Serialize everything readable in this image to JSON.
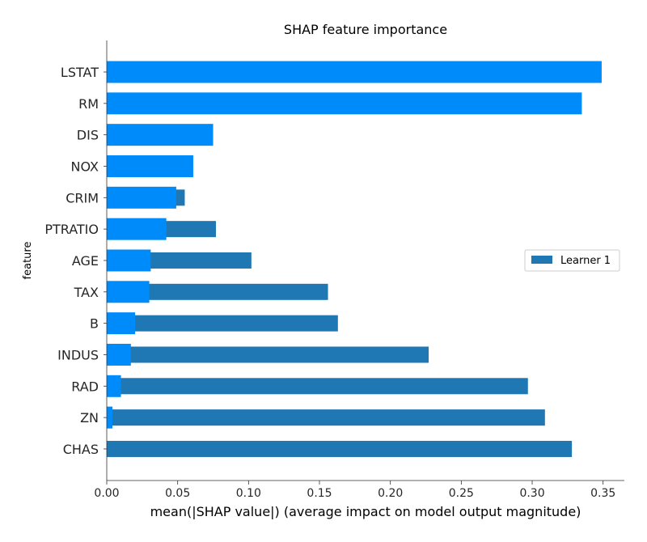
{
  "chart_data": {
    "type": "bar",
    "orientation": "horizontal",
    "title": "SHAP feature importance",
    "xlabel": "mean(|SHAP value|) (average impact on model output magnitude)",
    "ylabel": "feature",
    "xlim": [
      0,
      0.365
    ],
    "x_ticks": [
      "0.00",
      "0.05",
      "0.10",
      "0.15",
      "0.20",
      "0.25",
      "0.30",
      "0.35"
    ],
    "categories": [
      "LSTAT",
      "RM",
      "DIS",
      "NOX",
      "CRIM",
      "PTRATIO",
      "AGE",
      "TAX",
      "B",
      "INDUS",
      "RAD",
      "ZN",
      "CHAS"
    ],
    "series": [
      {
        "color": "#008bfb",
        "values": [
          0.349,
          0.335,
          0.075,
          0.061,
          0.049,
          0.042,
          0.031,
          0.03,
          0.02,
          0.017,
          0.01,
          0.004,
          0.0
        ]
      },
      {
        "name": "Learner 1",
        "color": "#1f77b4",
        "values": [
          0.0,
          0.0,
          0.0,
          0.0,
          0.055,
          0.077,
          0.102,
          0.156,
          0.163,
          0.227,
          0.297,
          0.309,
          0.328
        ]
      }
    ],
    "legend": {
      "position": "right",
      "entries": [
        "Learner 1"
      ]
    },
    "grid": false
  }
}
